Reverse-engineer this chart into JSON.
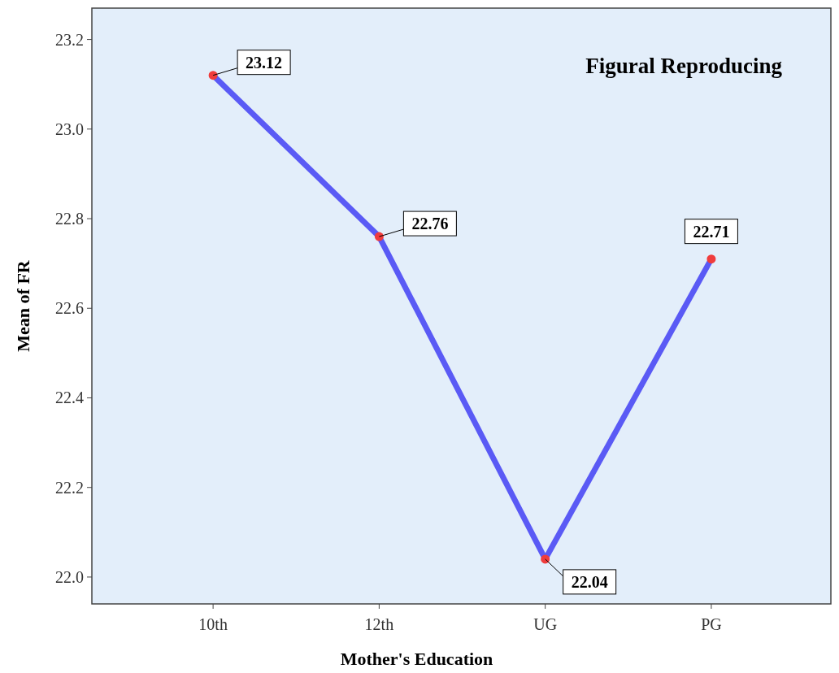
{
  "chart_data": {
    "type": "line",
    "title": "Figural Reproducing",
    "xlabel": "Mother's Education",
    "ylabel": "Mean of FR",
    "categories": [
      "10th",
      "12th",
      "UG",
      "PG"
    ],
    "series": [
      {
        "color": "#5a5af5",
        "colors": [
          "#f03c3c",
          "#f03c3c",
          "#f03c3c",
          "#f03c3c"
        ],
        "values": [
          23.12,
          22.76,
          22.04,
          22.71
        ]
      }
    ],
    "ylim": [
      21.94,
      23.27
    ],
    "yticks": [
      {
        "value": 22.0,
        "label": "22.0"
      },
      {
        "value": 22.2,
        "label": "22.2"
      },
      {
        "value": 22.4,
        "label": "22.4"
      },
      {
        "value": 22.6,
        "label": "22.6"
      },
      {
        "value": 22.8,
        "label": "22.8"
      },
      {
        "value": 23.0,
        "label": "23.0"
      },
      {
        "value": 23.2,
        "label": "23.2"
      }
    ],
    "data_labels": true,
    "marker": "circle",
    "grid": false
  }
}
